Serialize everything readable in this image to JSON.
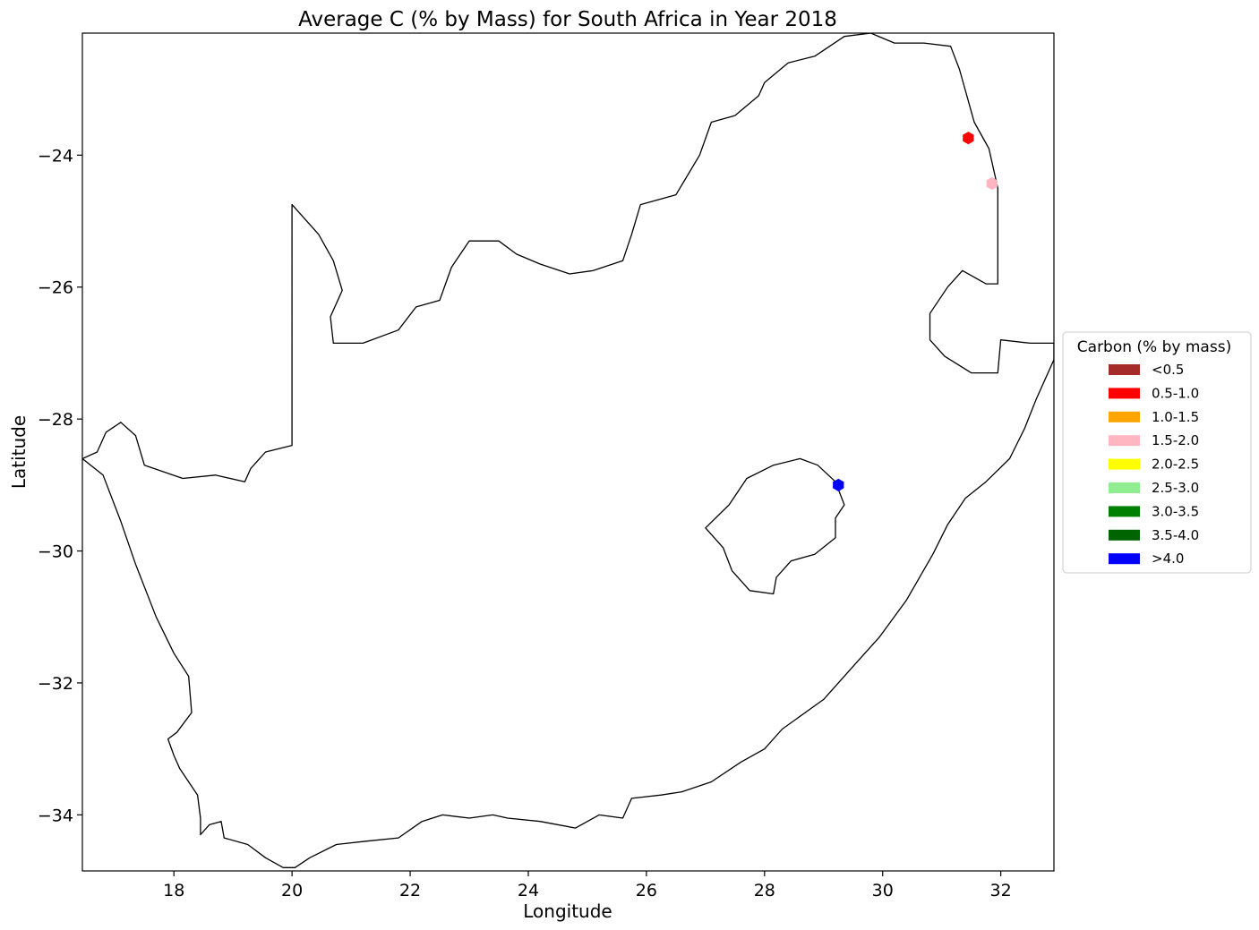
{
  "chart_data": {
    "type": "scatter",
    "title": "Average C (% by Mass) for South Africa in Year 2018",
    "xlabel": "Longitude",
    "ylabel": "Latitude",
    "xlim": [
      16.45,
      32.9
    ],
    "ylim": [
      -34.85,
      -22.15
    ],
    "x_ticks": [
      18,
      20,
      22,
      24,
      26,
      28,
      30,
      32
    ],
    "y_ticks": [
      -24,
      -26,
      -28,
      -30,
      -32,
      -34
    ],
    "x_tick_labels": [
      "18",
      "20",
      "22",
      "24",
      "26",
      "28",
      "30",
      "32"
    ],
    "y_tick_labels": [
      "−24",
      "−26",
      "−28",
      "−30",
      "−32",
      "−34"
    ],
    "grid": false,
    "legend": {
      "title": "Carbon (% by mass)",
      "placement": "center-right-outside",
      "entries": [
        {
          "label": "<0.5",
          "color": "#a52a2a"
        },
        {
          "label": "0.5-1.0",
          "color": "#ff0000"
        },
        {
          "label": "1.0-1.5",
          "color": "#ffa500"
        },
        {
          "label": "1.5-2.0",
          "color": "#ffb6c1"
        },
        {
          "label": "2.0-2.5",
          "color": "#ffff00"
        },
        {
          "label": "2.5-3.0",
          "color": "#90ee90"
        },
        {
          "label": "3.0-3.5",
          "color": "#008000"
        },
        {
          "label": "3.5-4.0",
          "color": "#006400"
        },
        {
          "label": ">4.0",
          "color": "#0000ff"
        }
      ]
    },
    "points": [
      {
        "lon": 31.45,
        "lat": -23.74,
        "category": "0.5-1.0",
        "color": "#ff0000"
      },
      {
        "lon": 31.85,
        "lat": -24.43,
        "category": "1.5-2.0",
        "color": "#ffb6c1"
      },
      {
        "lon": 29.25,
        "lat": -29.0,
        "category": ">4.0",
        "color": "#0000ff"
      }
    ],
    "boundaries": [
      {
        "name": "South Africa",
        "coords": [
          [
            16.45,
            -28.6
          ],
          [
            16.8,
            -28.85
          ],
          [
            17.1,
            -29.55
          ],
          [
            17.35,
            -30.2
          ],
          [
            17.7,
            -31.0
          ],
          [
            18.0,
            -31.55
          ],
          [
            18.25,
            -31.9
          ],
          [
            18.3,
            -32.45
          ],
          [
            18.05,
            -32.75
          ],
          [
            17.9,
            -32.85
          ],
          [
            18.0,
            -33.1
          ],
          [
            18.1,
            -33.3
          ],
          [
            18.4,
            -33.7
          ],
          [
            18.45,
            -34.05
          ],
          [
            18.45,
            -34.3
          ],
          [
            18.6,
            -34.15
          ],
          [
            18.8,
            -34.1
          ],
          [
            18.85,
            -34.35
          ],
          [
            19.25,
            -34.45
          ],
          [
            19.55,
            -34.65
          ],
          [
            19.85,
            -34.8
          ],
          [
            20.05,
            -34.8
          ],
          [
            20.3,
            -34.65
          ],
          [
            20.75,
            -34.45
          ],
          [
            21.25,
            -34.4
          ],
          [
            21.8,
            -34.35
          ],
          [
            22.2,
            -34.1
          ],
          [
            22.55,
            -34.0
          ],
          [
            23.0,
            -34.05
          ],
          [
            23.4,
            -34.0
          ],
          [
            23.65,
            -34.05
          ],
          [
            24.2,
            -34.1
          ],
          [
            24.8,
            -34.2
          ],
          [
            25.2,
            -34.0
          ],
          [
            25.6,
            -34.05
          ],
          [
            25.75,
            -33.75
          ],
          [
            26.25,
            -33.7
          ],
          [
            26.6,
            -33.65
          ],
          [
            27.1,
            -33.5
          ],
          [
            27.6,
            -33.2
          ],
          [
            28.0,
            -33.0
          ],
          [
            28.3,
            -32.7
          ],
          [
            29.0,
            -32.25
          ],
          [
            29.55,
            -31.7
          ],
          [
            29.95,
            -31.3
          ],
          [
            30.4,
            -30.75
          ],
          [
            30.85,
            -30.05
          ],
          [
            31.1,
            -29.6
          ],
          [
            31.4,
            -29.2
          ],
          [
            31.75,
            -28.95
          ],
          [
            32.15,
            -28.6
          ],
          [
            32.4,
            -28.15
          ],
          [
            32.6,
            -27.7
          ],
          [
            32.9,
            -27.1
          ],
          [
            32.9,
            -26.85
          ],
          [
            32.5,
            -26.85
          ],
          [
            32.0,
            -26.8
          ],
          [
            31.95,
            -27.3
          ],
          [
            31.5,
            -27.3
          ],
          [
            31.05,
            -27.05
          ],
          [
            30.8,
            -26.8
          ],
          [
            30.8,
            -26.4
          ],
          [
            31.1,
            -26.0
          ],
          [
            31.35,
            -25.75
          ],
          [
            31.75,
            -25.95
          ],
          [
            31.95,
            -25.95
          ],
          [
            31.95,
            -25.5
          ],
          [
            31.95,
            -25.1
          ],
          [
            31.95,
            -24.5
          ],
          [
            31.8,
            -23.9
          ],
          [
            31.55,
            -23.5
          ],
          [
            31.3,
            -22.7
          ],
          [
            31.15,
            -22.35
          ],
          [
            30.7,
            -22.3
          ],
          [
            30.2,
            -22.3
          ],
          [
            29.8,
            -22.15
          ],
          [
            29.35,
            -22.2
          ],
          [
            28.85,
            -22.5
          ],
          [
            28.4,
            -22.6
          ],
          [
            28.0,
            -22.9
          ],
          [
            27.9,
            -23.1
          ],
          [
            27.5,
            -23.4
          ],
          [
            27.1,
            -23.5
          ],
          [
            26.9,
            -24.0
          ],
          [
            26.5,
            -24.6
          ],
          [
            25.9,
            -24.75
          ],
          [
            25.75,
            -25.2
          ],
          [
            25.6,
            -25.6
          ],
          [
            25.1,
            -25.75
          ],
          [
            24.7,
            -25.8
          ],
          [
            24.2,
            -25.65
          ],
          [
            23.8,
            -25.5
          ],
          [
            23.5,
            -25.3
          ],
          [
            23.0,
            -25.3
          ],
          [
            22.7,
            -25.7
          ],
          [
            22.5,
            -26.2
          ],
          [
            22.1,
            -26.3
          ],
          [
            21.8,
            -26.65
          ],
          [
            21.2,
            -26.85
          ],
          [
            20.7,
            -26.85
          ],
          [
            20.65,
            -26.45
          ],
          [
            20.85,
            -26.05
          ],
          [
            20.7,
            -25.6
          ],
          [
            20.45,
            -25.2
          ],
          [
            20.0,
            -24.75
          ],
          [
            20.0,
            -25.75
          ],
          [
            20.0,
            -28.4
          ],
          [
            19.55,
            -28.5
          ],
          [
            19.3,
            -28.75
          ],
          [
            19.2,
            -28.95
          ],
          [
            18.7,
            -28.85
          ],
          [
            18.15,
            -28.9
          ],
          [
            17.5,
            -28.7
          ],
          [
            17.35,
            -28.25
          ],
          [
            17.1,
            -28.05
          ],
          [
            16.85,
            -28.2
          ],
          [
            16.7,
            -28.5
          ],
          [
            16.45,
            -28.6
          ]
        ]
      },
      {
        "name": "Lesotho",
        "coords": [
          [
            27.0,
            -29.65
          ],
          [
            27.4,
            -29.3
          ],
          [
            27.7,
            -28.9
          ],
          [
            28.15,
            -28.7
          ],
          [
            28.6,
            -28.6
          ],
          [
            28.9,
            -28.7
          ],
          [
            29.2,
            -28.95
          ],
          [
            29.35,
            -29.3
          ],
          [
            29.2,
            -29.5
          ],
          [
            29.2,
            -29.8
          ],
          [
            28.85,
            -30.05
          ],
          [
            28.45,
            -30.15
          ],
          [
            28.2,
            -30.4
          ],
          [
            28.15,
            -30.65
          ],
          [
            27.75,
            -30.6
          ],
          [
            27.45,
            -30.3
          ],
          [
            27.3,
            -29.95
          ],
          [
            27.0,
            -29.65
          ]
        ]
      }
    ]
  }
}
